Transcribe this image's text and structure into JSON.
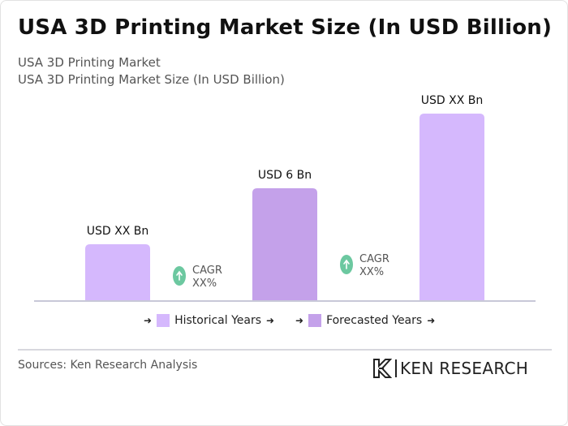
{
  "page": {
    "title": "USA 3D Printing Market Size (In USD Billion)",
    "subtitle_1": "USA 3D Printing Market",
    "subtitle_2": "USA 3D Printing Market Size (In USD Billion)",
    "source": "Sources: Ken Research Analysis",
    "logo_text": "KEN RESEARCH"
  },
  "colors": {
    "historical": "#d5b8fd",
    "forecast": "#c4a1ea",
    "cagr_circle": "#6cc8a0",
    "axis": "#c8c8d8"
  },
  "legend": {
    "historical_label": "Historical Years",
    "forecast_label": "Forecasted Years",
    "arrow": "➜"
  },
  "chart_data": {
    "type": "bar",
    "categories": [
      "",
      "",
      ""
    ],
    "values": [
      3,
      6,
      10
    ],
    "data_labels": [
      "USD XX Bn",
      "USD 6 Bn",
      "USD XX Bn"
    ],
    "bar_kind": [
      "historical",
      "forecast",
      "historical"
    ],
    "ylim": [
      0,
      10.5
    ],
    "grid": false,
    "legend_position": "bottom-center",
    "cagr_annotations": [
      {
        "label": "CAGR",
        "value": "XX%",
        "icon": "arrow-up-icon"
      },
      {
        "label": "CAGR",
        "value": "XX%",
        "icon": "arrow-up-icon"
      }
    ]
  }
}
